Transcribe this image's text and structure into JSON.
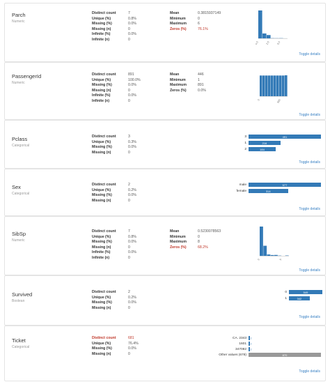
{
  "variables": [
    {
      "name": "Parch",
      "type": "Numeric",
      "stats_left": [
        {
          "label": "Distinct count",
          "value": "7"
        },
        {
          "label": "Unique (%)",
          "value": "0.8%"
        },
        {
          "label": "Missing (%)",
          "value": "0.0%"
        },
        {
          "label": "Missing (n)",
          "value": "0"
        },
        {
          "label": "Infinite (%)",
          "value": "0.0%"
        },
        {
          "label": "Infinite (n)",
          "value": "0"
        }
      ],
      "stats_right": [
        {
          "label": "Mean",
          "value": "0.3815937149"
        },
        {
          "label": "Minimum",
          "value": "0"
        },
        {
          "label": "Maximum",
          "value": "6"
        },
        {
          "label": "Zeros (%)",
          "value": "76.1%"
        }
      ],
      "toggle": "Toggle details",
      "histogram": {
        "values": [
          678,
          118,
          80,
          5,
          4,
          5,
          1
        ],
        "ticks": [
          "0.0",
          "2.5",
          "5.0"
        ]
      }
    },
    {
      "name": "PassengerId",
      "type": "Numeric",
      "stats_left": [
        {
          "label": "Distinct count",
          "value": "891"
        },
        {
          "label": "Unique (%)",
          "value": "100.0%"
        },
        {
          "label": "Missing (%)",
          "value": "0.0%"
        },
        {
          "label": "Missing (n)",
          "value": "0"
        },
        {
          "label": "Infinite (%)",
          "value": "0.0%"
        },
        {
          "label": "Infinite (n)",
          "value": "0"
        }
      ],
      "stats_right": [
        {
          "label": "Mean",
          "value": "446"
        },
        {
          "label": "Minimum",
          "value": "1"
        },
        {
          "label": "Maximum",
          "value": "891"
        },
        {
          "label": "Zeros (%)",
          "value": "0.0%"
        }
      ],
      "toggle": "Toggle details",
      "histogram": {
        "values": [
          89,
          89,
          89,
          89,
          89,
          89,
          89,
          89,
          89,
          90
        ],
        "ticks": [
          "0",
          "500"
        ]
      }
    },
    {
      "name": "Pclass",
      "type": "Categorical",
      "stats_left": [
        {
          "label": "Distinct count",
          "value": "3"
        },
        {
          "label": "Unique (%)",
          "value": "0.3%"
        },
        {
          "label": "Missing (%)",
          "value": "0.0%"
        },
        {
          "label": "Missing (n)",
          "value": "0"
        }
      ],
      "toggle": "Toggle details",
      "freq": [
        {
          "label": "3",
          "count": "491",
          "value": 491
        },
        {
          "label": "1",
          "count": "216",
          "value": 216
        },
        {
          "label": "2",
          "count": "184",
          "value": 184
        }
      ],
      "freq_max": 491
    },
    {
      "name": "Sex",
      "type": "Categorical",
      "stats_left": [
        {
          "label": "Distinct count",
          "value": "2"
        },
        {
          "label": "Unique (%)",
          "value": "0.2%"
        },
        {
          "label": "Missing (%)",
          "value": "0.0%"
        },
        {
          "label": "Missing (n)",
          "value": "0"
        }
      ],
      "toggle": "Toggle details",
      "freq": [
        {
          "label": "male",
          "count": "577",
          "value": 577
        },
        {
          "label": "female",
          "count": "314",
          "value": 314
        }
      ],
      "freq_max": 577
    },
    {
      "name": "SibSp",
      "type": "Numeric",
      "stats_left": [
        {
          "label": "Distinct count",
          "value": "7"
        },
        {
          "label": "Unique (%)",
          "value": "0.8%"
        },
        {
          "label": "Missing (%)",
          "value": "0.0%"
        },
        {
          "label": "Missing (n)",
          "value": "0"
        },
        {
          "label": "Infinite (%)",
          "value": "0.0%"
        },
        {
          "label": "Infinite (n)",
          "value": "0"
        }
      ],
      "stats_right": [
        {
          "label": "Mean",
          "value": "0.5230078563"
        },
        {
          "label": "Minimum",
          "value": "0"
        },
        {
          "label": "Maximum",
          "value": "8"
        },
        {
          "label": "Zeros (%)",
          "value": "68.2%"
        }
      ],
      "toggle": "Toggle details",
      "histogram": {
        "values": [
          608,
          209,
          28,
          16,
          18,
          5,
          0,
          7
        ],
        "ticks": [
          "0",
          "5"
        ]
      }
    },
    {
      "name": "Survived",
      "type": "Boolean",
      "stats_left": [
        {
          "label": "Distinct count",
          "value": "2"
        },
        {
          "label": "Unique (%)",
          "value": "0.2%"
        },
        {
          "label": "Missing (%)",
          "value": "0.0%"
        },
        {
          "label": "Missing (n)",
          "value": "0"
        }
      ],
      "toggle": "Toggle details",
      "freq": [
        {
          "label": "0",
          "count": "549",
          "value": 549
        },
        {
          "label": "1",
          "count": "342",
          "value": 342
        }
      ],
      "freq_max": 549
    },
    {
      "name": "Ticket",
      "type": "Categorical",
      "stats_left": [
        {
          "label": "Distinct count",
          "value": "681"
        },
        {
          "label": "Unique (%)",
          "value": "76.4%"
        },
        {
          "label": "Missing (%)",
          "value": "0.0%"
        },
        {
          "label": "Missing (n)",
          "value": "0"
        }
      ],
      "toggle": "Toggle details",
      "freq": [
        {
          "label": "CA. 2343",
          "count": "7",
          "value": 7
        },
        {
          "label": "1601",
          "count": "7",
          "value": 7
        },
        {
          "label": "347082",
          "count": "7",
          "value": 7
        },
        {
          "label": "Other values (678)",
          "count": "870",
          "value": 870
        }
      ],
      "freq_max": 870
    }
  ],
  "colors": {
    "bar": "#337ab7",
    "other_bar": "#999999",
    "warning": "#c0392b",
    "link": "#3b82c4"
  }
}
